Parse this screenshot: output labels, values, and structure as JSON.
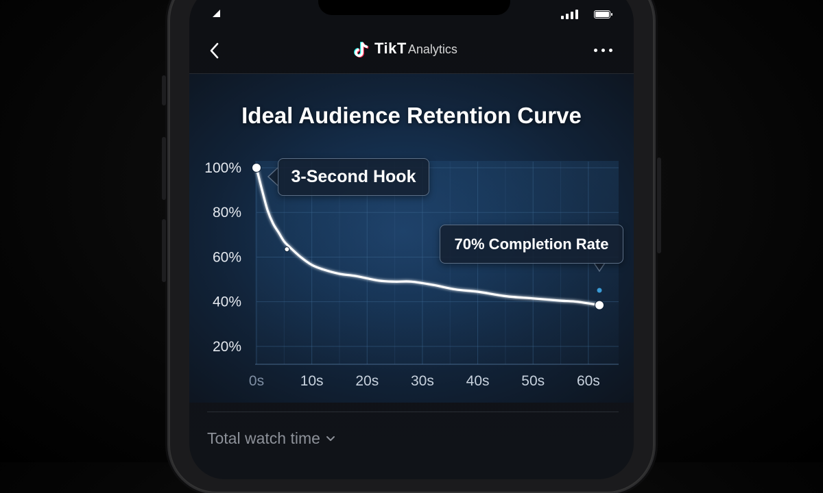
{
  "header": {
    "brand": "TikT",
    "subtitle": "Analytics",
    "logo_icon": "tiktok-note-icon",
    "back_icon": "chevron-left-icon",
    "more_icon": "more-horizontal-icon"
  },
  "status_bar": {
    "signal_icon": "signal-icon",
    "battery_icon": "battery-icon"
  },
  "chart_data": {
    "type": "line",
    "title": "Ideal Audience Retention Curve",
    "xlabel": "",
    "ylabel": "",
    "x_ticks": [
      "0s",
      "10s",
      "20s",
      "30s",
      "40s",
      "50s",
      "60s"
    ],
    "y_ticks": [
      "100%",
      "80%",
      "60%",
      "40%",
      "20%"
    ],
    "xlim": [
      0,
      62
    ],
    "ylim": [
      12,
      100
    ],
    "grid": true,
    "series": [
      {
        "color": "#ffffff",
        "x": [
          0,
          1,
          2,
          3,
          4,
          5,
          6,
          8,
          10,
          12,
          15,
          18,
          22,
          25,
          28,
          32,
          36,
          40,
          45,
          50,
          55,
          58,
          62
        ],
        "y": [
          100,
          90,
          81,
          75,
          71,
          67,
          64.5,
          60,
          56.5,
          54.5,
          52.5,
          51.5,
          49.5,
          49,
          49,
          47.5,
          45.5,
          44.5,
          42.5,
          41.5,
          40.5,
          40,
          38.5
        ]
      }
    ],
    "markers": [
      {
        "x": 0,
        "y": 100,
        "style": "large"
      },
      {
        "x": 5.5,
        "y": 63.5,
        "style": "small"
      },
      {
        "x": 62,
        "y": 38.5,
        "style": "large"
      }
    ],
    "annotations": [
      {
        "text": "3-Second Hook"
      },
      {
        "text": "70% Completion Rate"
      }
    ],
    "accent_color": "#3a9bd6"
  },
  "footer": {
    "metric_label": "Total watch time",
    "dropdown_icon": "chevron-down-icon"
  }
}
